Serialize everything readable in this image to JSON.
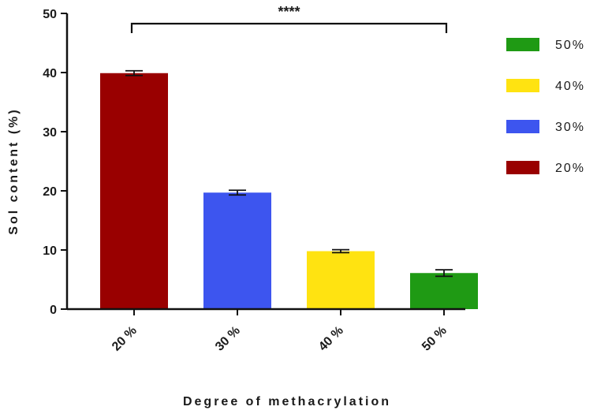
{
  "chart_data": {
    "type": "bar",
    "categories": [
      "20 %",
      "30 %",
      "40 %",
      "50 %"
    ],
    "values": [
      39.9,
      19.7,
      9.8,
      6.1
    ],
    "errors": [
      0.4,
      0.4,
      0.25,
      0.55
    ],
    "colors": [
      "#990000",
      "#3d55ef",
      "#ffe311",
      "#1f9a14"
    ],
    "xlabel": "Degree of methacrylation",
    "ylabel": "Sol content (%)",
    "ylim": [
      0,
      50
    ],
    "yticks": [
      0,
      10,
      20,
      30,
      40,
      50
    ],
    "grid": false,
    "legend": {
      "placement": "right",
      "entries": [
        {
          "label": "50%",
          "color": "#1f9a14"
        },
        {
          "label": "40%",
          "color": "#ffe311"
        },
        {
          "label": "30%",
          "color": "#3d55ef"
        },
        {
          "label": "20%",
          "color": "#990000"
        }
      ]
    },
    "annotations": [
      {
        "text": "****",
        "from_category": "20 %",
        "to_category": "50 %"
      }
    ]
  }
}
